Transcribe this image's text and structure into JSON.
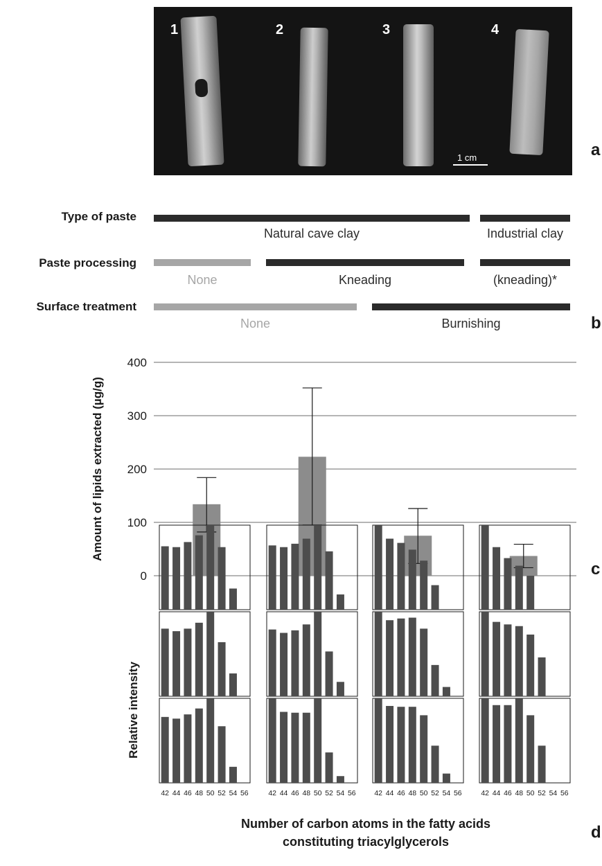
{
  "panel_labels": {
    "a": "a",
    "b": "b",
    "c": "c",
    "d": "d"
  },
  "photo": {
    "rod_numbers": [
      "1",
      "2",
      "3",
      "4"
    ],
    "scale_bar_label": "1 cm"
  },
  "treatments": {
    "rows": [
      {
        "label": "Type of paste",
        "segments": [
          {
            "text": "Natural cave clay",
            "tone": "dark"
          },
          {
            "text": "Industrial clay",
            "tone": "dark"
          }
        ]
      },
      {
        "label": "Paste processing",
        "segments": [
          {
            "text": "None",
            "tone": "light"
          },
          {
            "text": "Kneading",
            "tone": "dark"
          },
          {
            "text": "(kneading)*",
            "tone": "dark"
          }
        ]
      },
      {
        "label": "Surface treatment",
        "segments": [
          {
            "text": "None",
            "tone": "light"
          },
          {
            "text": "Burnishing",
            "tone": "dark"
          }
        ]
      }
    ]
  },
  "chart_data": [
    {
      "type": "bar",
      "ylabel": "Amount of lipids extracted (µg/g)",
      "ylim": [
        0,
        400
      ],
      "yticks": [
        0,
        100,
        200,
        300,
        400
      ],
      "grid": true,
      "values": [
        134,
        223,
        75,
        37
      ],
      "error_low": [
        82,
        95,
        23,
        15
      ],
      "error_high": [
        184,
        352,
        126,
        59
      ],
      "color": "#8c8c8c"
    },
    {
      "type": "bar",
      "ylabel": "Relative intensity",
      "xlabel": "Number of carbon atoms in the fatty acids constituting triacylglycerols",
      "x": [
        "42",
        "44",
        "46",
        "48",
        "50",
        "52",
        "54",
        "56"
      ],
      "ylim": [
        0,
        100
      ],
      "color": "#4d4d4d",
      "panels": [
        [
          [
            75,
            74,
            80,
            88,
            100,
            74,
            25,
            0
          ],
          [
            80,
            77,
            80,
            87,
            100,
            64,
            27,
            0
          ],
          [
            78,
            76,
            81,
            88,
            100,
            67,
            19,
            0
          ]
        ],
        [
          [
            76,
            74,
            78,
            84,
            100,
            69,
            18,
            0
          ],
          [
            79,
            75,
            78,
            85,
            100,
            53,
            17,
            0
          ],
          [
            100,
            84,
            83,
            83,
            100,
            36,
            8,
            0
          ]
        ],
        [
          [
            100,
            84,
            79,
            71,
            58,
            29,
            0,
            0
          ],
          [
            100,
            90,
            92,
            93,
            80,
            37,
            11,
            0
          ],
          [
            100,
            91,
            90,
            90,
            80,
            44,
            11,
            0
          ]
        ],
        [
          [
            100,
            74,
            61,
            52,
            40,
            0,
            0,
            0
          ],
          [
            100,
            88,
            85,
            83,
            73,
            46,
            0,
            0
          ],
          [
            100,
            92,
            92,
            100,
            80,
            44,
            0,
            0
          ]
        ]
      ]
    }
  ]
}
